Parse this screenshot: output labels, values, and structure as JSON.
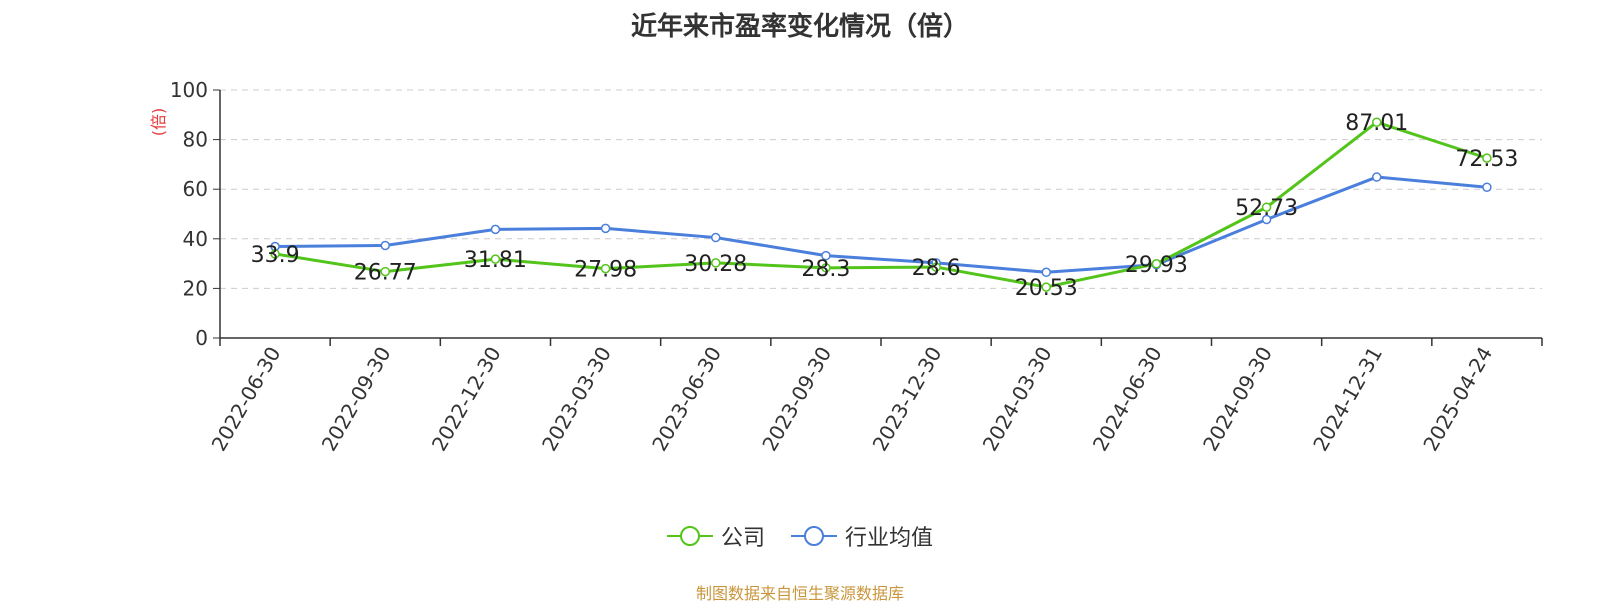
{
  "chart_data": {
    "type": "line",
    "title": "近年来市盈率变化情况（倍）",
    "ylabel": "(倍)",
    "xlabel": "",
    "ylim": [
      0,
      100
    ],
    "yticks": [
      "0",
      "20",
      "40",
      "60",
      "80",
      "100"
    ],
    "grid": true,
    "legend_position": "bottom",
    "categories": [
      "2022-06-30",
      "2022-09-30",
      "2022-12-30",
      "2023-03-30",
      "2023-06-30",
      "2023-09-30",
      "2023-12-30",
      "2024-03-30",
      "2024-06-30",
      "2024-09-30",
      "2024-12-31",
      "2025-04-24"
    ],
    "series": [
      {
        "name": "公司",
        "color": "#52c41a",
        "values": [
          33.9,
          26.77,
          31.81,
          27.98,
          30.28,
          28.3,
          28.6,
          20.53,
          29.93,
          52.73,
          87.01,
          72.53
        ],
        "labels": [
          "33.9",
          "26.77",
          "31.81",
          "27.98",
          "30.28",
          "28.3",
          "28.6",
          "20.53",
          "29.93",
          "52.73",
          "87.01",
          "72.53"
        ]
      },
      {
        "name": "行业均值",
        "color": "#4a7fdc",
        "values": [
          36.9,
          37.3,
          43.8,
          44.2,
          40.5,
          33.2,
          30.3,
          26.5,
          29.6,
          47.8,
          64.9,
          60.8
        ]
      }
    ]
  },
  "footer": {
    "source": "制图数据来自恒生聚源数据库"
  },
  "colors": {
    "ylabel": "#e8393b",
    "axis": "#333333",
    "grid": "#cccccc",
    "source": "#c8963c"
  }
}
